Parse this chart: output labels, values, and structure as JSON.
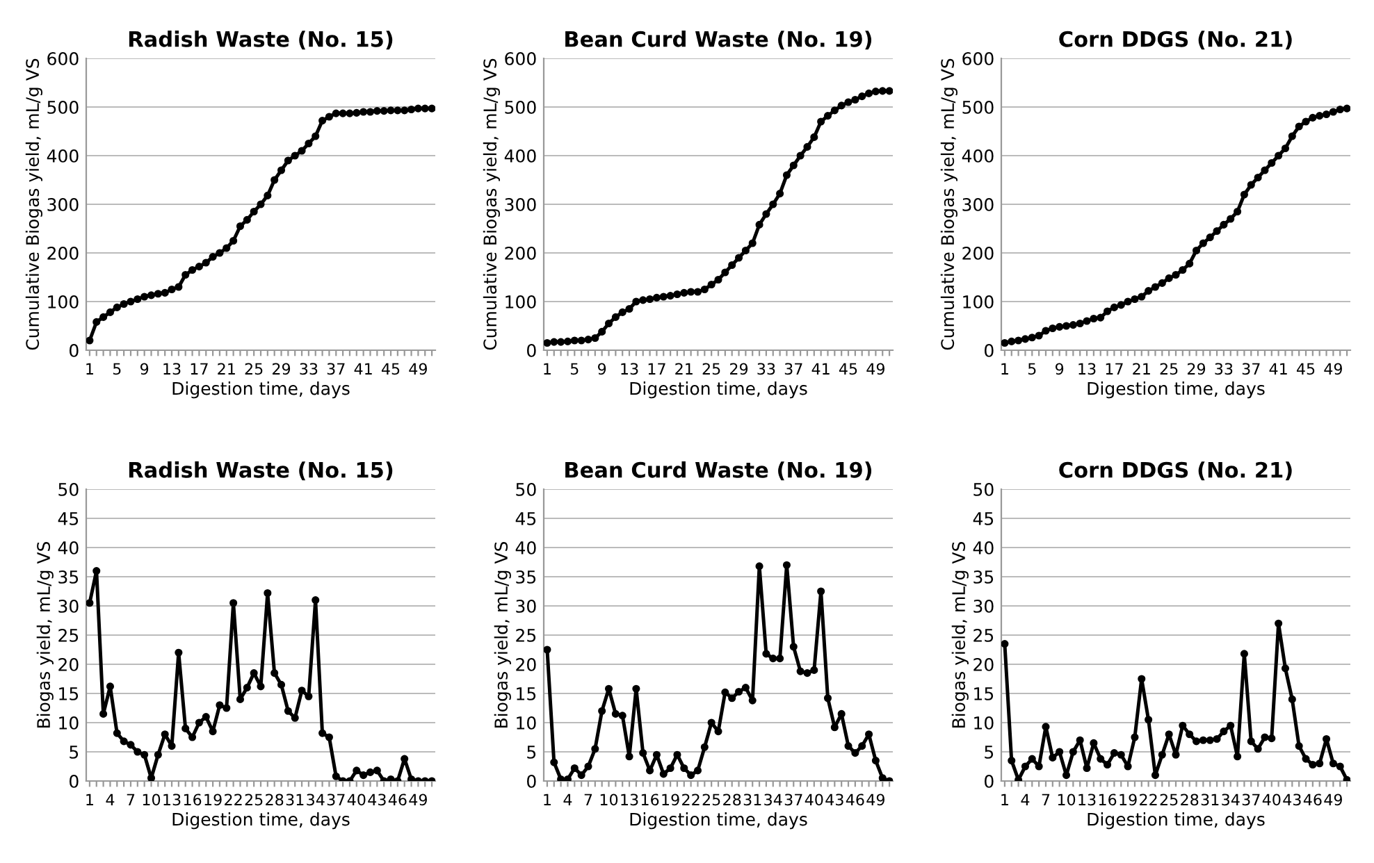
{
  "chart_data": [
    {
      "type": "line",
      "title": "Radish Waste (No. 15)",
      "xlabel": "Digestion time, days",
      "ylabel": "Cumulative Biogas yield, mL/g VS",
      "categories": [
        "1",
        null,
        null,
        null,
        "5",
        null,
        null,
        null,
        "9",
        null,
        null,
        null,
        "13",
        null,
        null,
        null,
        "17",
        null,
        null,
        null,
        "21",
        null,
        null,
        null,
        "25",
        null,
        null,
        null,
        "29",
        null,
        null,
        null,
        "33",
        null,
        null,
        null,
        "37",
        null,
        null,
        null,
        "41",
        null,
        null,
        null,
        "45",
        null,
        null,
        null,
        "49",
        null,
        null
      ],
      "ylim": [
        0,
        600
      ],
      "yticks": [
        0,
        100,
        200,
        300,
        400,
        500,
        600
      ],
      "grid": "y",
      "marker": "circle",
      "series": [
        {
          "color": "#000000",
          "values": [
            20,
            58,
            68,
            78,
            88,
            95,
            100,
            105,
            110,
            113,
            116,
            118,
            125,
            130,
            155,
            165,
            172,
            180,
            192,
            200,
            210,
            225,
            255,
            268,
            285,
            300,
            318,
            350,
            370,
            390,
            400,
            410,
            425,
            440,
            472,
            480,
            487,
            487,
            487,
            488,
            490,
            490,
            492,
            492,
            493,
            493,
            493,
            495,
            497,
            497,
            497
          ]
        }
      ]
    },
    {
      "type": "line",
      "title": "Bean Curd Waste (No. 19)",
      "xlabel": "Digestion time, days",
      "ylabel": "Cumulative Biogas yield, mL/g VS",
      "categories": [
        "1",
        null,
        null,
        null,
        "5",
        null,
        null,
        null,
        "9",
        null,
        null,
        null,
        "13",
        null,
        null,
        null,
        "17",
        null,
        null,
        null,
        "21",
        null,
        null,
        null,
        "25",
        null,
        null,
        null,
        "29",
        null,
        null,
        null,
        "33",
        null,
        null,
        null,
        "37",
        null,
        null,
        null,
        "41",
        null,
        null,
        null,
        "45",
        null,
        null,
        null,
        "49",
        null,
        null
      ],
      "ylim": [
        0,
        600
      ],
      "yticks": [
        0,
        100,
        200,
        300,
        400,
        500,
        600
      ],
      "grid": "y",
      "marker": "circle",
      "series": [
        {
          "color": "#000000",
          "values": [
            15,
            17,
            17,
            18,
            20,
            20,
            22,
            25,
            38,
            55,
            68,
            78,
            85,
            100,
            103,
            105,
            108,
            110,
            112,
            115,
            118,
            120,
            120,
            125,
            135,
            145,
            160,
            175,
            190,
            205,
            220,
            258,
            280,
            300,
            322,
            360,
            380,
            400,
            418,
            438,
            470,
            482,
            493,
            503,
            510,
            515,
            522,
            528,
            532,
            533,
            533
          ]
        }
      ]
    },
    {
      "type": "line",
      "title": "Corn DDGS (No. 21)",
      "xlabel": "Digestion time, days",
      "ylabel": "Cumulative Biogas yield, mL/g VS",
      "categories": [
        "1",
        null,
        null,
        null,
        "5",
        null,
        null,
        null,
        "9",
        null,
        null,
        null,
        "13",
        null,
        null,
        null,
        "17",
        null,
        null,
        null,
        "21",
        null,
        null,
        null,
        "25",
        null,
        null,
        null,
        "29",
        null,
        null,
        null,
        "33",
        null,
        null,
        null,
        "37",
        null,
        null,
        null,
        "41",
        null,
        null,
        null,
        "45",
        null,
        null,
        null,
        "49",
        null,
        null
      ],
      "ylim": [
        0,
        600
      ],
      "yticks": [
        0,
        100,
        200,
        300,
        400,
        500,
        600
      ],
      "grid": "y",
      "marker": "circle",
      "series": [
        {
          "color": "#000000",
          "values": [
            15,
            18,
            20,
            23,
            26,
            30,
            40,
            45,
            48,
            50,
            52,
            55,
            60,
            65,
            67,
            80,
            88,
            93,
            100,
            105,
            110,
            122,
            130,
            138,
            148,
            155,
            165,
            178,
            205,
            220,
            232,
            245,
            258,
            270,
            285,
            320,
            340,
            355,
            370,
            385,
            400,
            415,
            440,
            460,
            470,
            478,
            482,
            485,
            490,
            495,
            497
          ]
        }
      ]
    },
    {
      "type": "line",
      "title": "Radish Waste (No. 15)",
      "xlabel": "Digestion time, days",
      "ylabel": "Biogas yield, mL/g VS",
      "categories": [
        "1",
        null,
        null,
        "4",
        null,
        null,
        "7",
        null,
        null,
        "10",
        null,
        null,
        "13",
        null,
        null,
        "16",
        null,
        null,
        "19",
        null,
        null,
        "22",
        null,
        null,
        "25",
        null,
        null,
        "28",
        null,
        null,
        "31",
        null,
        null,
        "34",
        null,
        null,
        "37",
        null,
        null,
        "40",
        null,
        null,
        "43",
        null,
        null,
        "46",
        null,
        null,
        "49",
        null,
        null
      ],
      "ylim": [
        0,
        50
      ],
      "yticks": [
        0,
        5,
        10,
        15,
        20,
        25,
        30,
        35,
        40,
        45,
        50
      ],
      "grid": "y",
      "marker": "circle",
      "series": [
        {
          "color": "#000000",
          "values": [
            30.5,
            36,
            11.5,
            16.2,
            8.2,
            6.8,
            6.2,
            5,
            4.5,
            0.5,
            4.5,
            8,
            6,
            22,
            9,
            7.5,
            10,
            11,
            8.5,
            13,
            12.5,
            30.5,
            14,
            16,
            18.5,
            16.2,
            32.2,
            18.5,
            16.5,
            12,
            10.8,
            15.5,
            14.5,
            31,
            8.2,
            7.5,
            0.8,
            0,
            0,
            1.8,
            1,
            1.5,
            1.8,
            0,
            0.3,
            0,
            3.8,
            0.3,
            0,
            0,
            0
          ]
        }
      ]
    },
    {
      "type": "line",
      "title": "Bean Curd Waste (No. 19)",
      "xlabel": "Digestion time, days",
      "ylabel": "Biogas yield, mL/g VS",
      "categories": [
        "1",
        null,
        null,
        "4",
        null,
        null,
        "7",
        null,
        null,
        "10",
        null,
        null,
        "13",
        null,
        null,
        "16",
        null,
        null,
        "19",
        null,
        null,
        "22",
        null,
        null,
        "25",
        null,
        null,
        "28",
        null,
        null,
        "31",
        null,
        null,
        "34",
        null,
        null,
        "37",
        null,
        null,
        "40",
        null,
        null,
        "43",
        null,
        null,
        "46",
        null,
        null,
        "49",
        null,
        null
      ],
      "ylim": [
        0,
        50
      ],
      "yticks": [
        0,
        5,
        10,
        15,
        20,
        25,
        30,
        35,
        40,
        45,
        50
      ],
      "grid": "y",
      "marker": "circle",
      "series": [
        {
          "color": "#000000",
          "values": [
            22.5,
            3.2,
            0.3,
            0.3,
            2.2,
            1,
            2.5,
            5.5,
            12,
            15.8,
            11.5,
            11.2,
            4.2,
            15.8,
            4.8,
            1.8,
            4.5,
            1.2,
            2.2,
            4.5,
            2.2,
            1,
            1.8,
            5.8,
            10,
            8.5,
            15.2,
            14.2,
            15.3,
            16,
            13.8,
            36.8,
            21.8,
            21,
            21,
            37,
            23,
            18.8,
            18.5,
            19,
            32.5,
            14.2,
            9.2,
            11.5,
            6,
            4.8,
            6,
            8,
            3.5,
            0.5,
            0
          ]
        }
      ]
    },
    {
      "type": "line",
      "title": "Corn DDGS (No. 21)",
      "xlabel": "Digestion time, days",
      "ylabel": "Biogas yield, mL/g VS",
      "categories": [
        "1",
        null,
        null,
        "4",
        null,
        null,
        "7",
        null,
        null,
        "10",
        null,
        null,
        "13",
        null,
        null,
        "16",
        null,
        null,
        "19",
        null,
        null,
        "22",
        null,
        null,
        "25",
        null,
        null,
        "28",
        null,
        null,
        "31",
        null,
        null,
        "34",
        null,
        null,
        "37",
        null,
        null,
        "40",
        null,
        null,
        "43",
        null,
        null,
        "46",
        null,
        null,
        "49",
        null,
        null
      ],
      "ylim": [
        0,
        50
      ],
      "yticks": [
        0,
        5,
        10,
        15,
        20,
        25,
        30,
        35,
        40,
        45,
        50
      ],
      "grid": "y",
      "marker": "circle",
      "series": [
        {
          "color": "#000000",
          "values": [
            23.5,
            3.5,
            0.2,
            2.5,
            3.8,
            2.5,
            9.3,
            4,
            5,
            1,
            5,
            7,
            2.2,
            6.5,
            3.8,
            2.8,
            4.8,
            4.5,
            2.5,
            7.5,
            17.5,
            10.5,
            1,
            4.5,
            8,
            4.5,
            9.5,
            8,
            6.8,
            7,
            7,
            7.2,
            8.5,
            9.5,
            4.2,
            21.8,
            6.8,
            5.5,
            7.5,
            7.3,
            27,
            19.3,
            14,
            6,
            3.8,
            2.8,
            3,
            7.2,
            3,
            2.5,
            0.2
          ]
        }
      ]
    }
  ]
}
